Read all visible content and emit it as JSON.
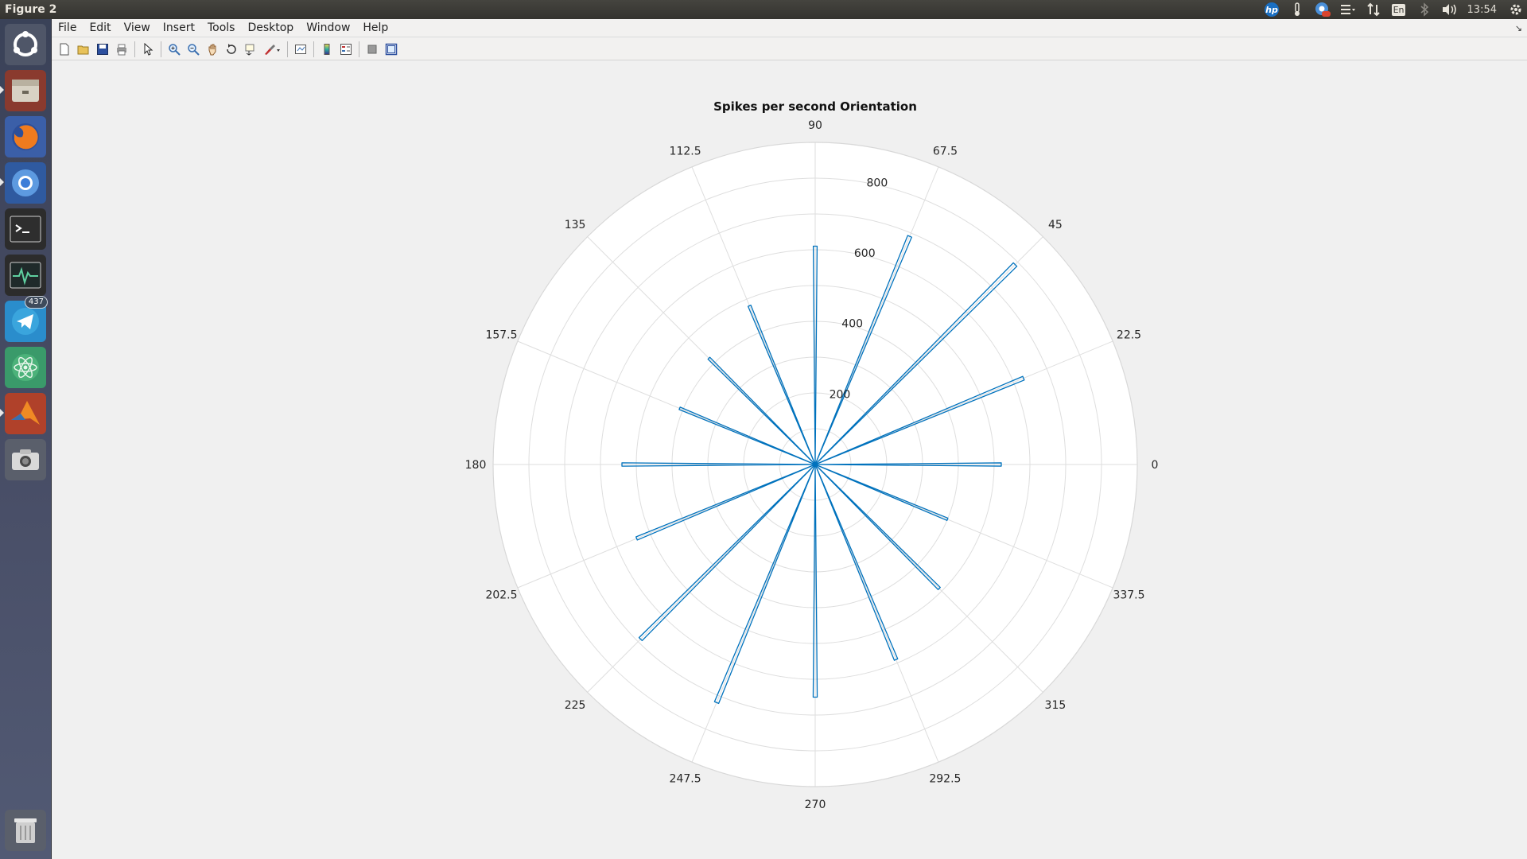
{
  "window": {
    "title": "Figure 2"
  },
  "top_panel": {
    "indicators": [
      {
        "name": "hp-icon",
        "label": "hp"
      },
      {
        "name": "thermometer-icon",
        "label": ""
      },
      {
        "name": "chromium-notify-icon",
        "label": ""
      },
      {
        "name": "menu-list-icon",
        "label": ""
      },
      {
        "name": "network-arrows-icon",
        "label": ""
      },
      {
        "name": "keyboard-layout-icon",
        "label": "En"
      },
      {
        "name": "bluetooth-icon",
        "label": ""
      },
      {
        "name": "volume-icon",
        "label": ""
      }
    ],
    "clock": "13:54"
  },
  "launcher": {
    "items": [
      {
        "name": "ubuntu-dash-icon"
      },
      {
        "name": "files-icon"
      },
      {
        "name": "firefox-icon"
      },
      {
        "name": "chromium-icon"
      },
      {
        "name": "terminal-icon"
      },
      {
        "name": "system-monitor-icon"
      },
      {
        "name": "telegram-icon",
        "badge": "437"
      },
      {
        "name": "atom-icon"
      },
      {
        "name": "matlab-icon"
      },
      {
        "name": "screenshot-icon"
      },
      {
        "name": "trash-icon"
      }
    ]
  },
  "menubar": {
    "items": [
      "File",
      "Edit",
      "View",
      "Insert",
      "Tools",
      "Desktop",
      "Window",
      "Help"
    ]
  },
  "toolbar": {
    "buttons": [
      "new-figure-icon",
      "open-icon",
      "save-icon",
      "print-icon",
      "pointer-icon",
      "zoom-in-icon",
      "zoom-out-icon",
      "pan-icon",
      "rotate-icon",
      "data-cursor-icon",
      "brush-icon",
      "link-plot-icon",
      "colorbar-icon",
      "legend-icon",
      "hide-plot-tools-icon",
      "show-plot-tools-icon"
    ]
  },
  "chart_data": {
    "type": "polar-histogram",
    "title": "Spikes per second Orientation",
    "theta_tick_labels": [
      "0",
      "22.5",
      "45",
      "67.5",
      "90",
      "112.5",
      "135",
      "157.5",
      "180",
      "202.5",
      "225",
      "247.5",
      "270",
      "292.5",
      "315",
      "337.5"
    ],
    "r_tick_labels": [
      "200",
      "400",
      "600",
      "800"
    ],
    "rlim": [
      0,
      900
    ],
    "grid": true,
    "color": "#0072bd",
    "bars": [
      {
        "theta": 0,
        "r": 520
      },
      {
        "theta": 22.5,
        "r": 630
      },
      {
        "theta": 45,
        "r": 790
      },
      {
        "theta": 67.5,
        "r": 690
      },
      {
        "theta": 90,
        "r": 610
      },
      {
        "theta": 112.5,
        "r": 480
      },
      {
        "theta": 135,
        "r": 420
      },
      {
        "theta": 157.5,
        "r": 410
      },
      {
        "theta": 180,
        "r": 540
      },
      {
        "theta": 202.5,
        "r": 540
      },
      {
        "theta": 225,
        "r": 690
      },
      {
        "theta": 247.5,
        "r": 720
      },
      {
        "theta": 270,
        "r": 650
      },
      {
        "theta": 292.5,
        "r": 590
      },
      {
        "theta": 315,
        "r": 490
      },
      {
        "theta": 337.5,
        "r": 400
      }
    ]
  }
}
